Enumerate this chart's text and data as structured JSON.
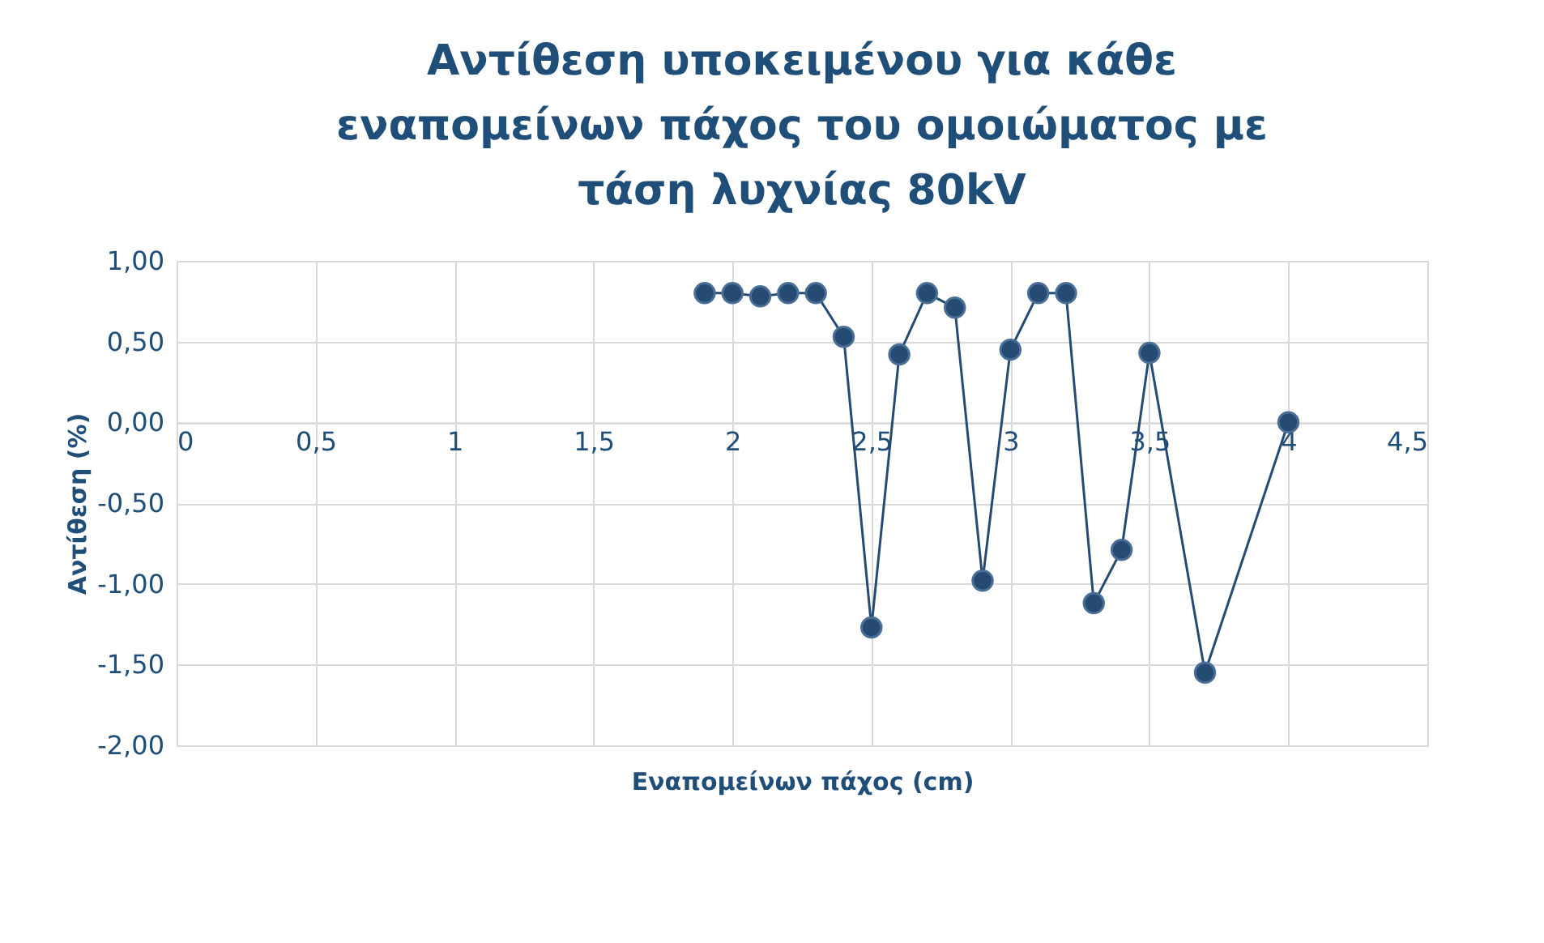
{
  "chart_data": {
    "type": "line",
    "title": "Αντίθεση υποκειμένου για κάθε εναπομείνων πάχος του ομοιώματος με τάση λυχνίας 80kV",
    "xlabel": "Εναπομείνων πάχος (cm)",
    "ylabel": "Αντίθεση (%)",
    "x": [
      1.9,
      2.0,
      2.1,
      2.2,
      2.3,
      2.4,
      2.5,
      2.6,
      2.7,
      2.8,
      2.9,
      3.0,
      3.1,
      3.2,
      3.3,
      3.4,
      3.5,
      3.7,
      4.0
    ],
    "series": [
      {
        "color": "#264b73",
        "values": [
          0.8,
          0.8,
          0.78,
          0.8,
          0.8,
          0.53,
          -1.27,
          0.42,
          0.8,
          0.71,
          -0.98,
          0.45,
          0.8,
          0.8,
          -1.12,
          -0.79,
          0.43,
          -1.55,
          0.0
        ]
      }
    ],
    "xlim": [
      0,
      4.5
    ],
    "ylim": [
      -2,
      1
    ],
    "xticks": [
      0,
      {
        "value": 0.5,
        "label": "0,5"
      },
      1,
      {
        "value": 1.5,
        "label": "1,5"
      },
      2,
      {
        "value": 2.5,
        "label": "2,5"
      },
      3,
      {
        "value": 3.5,
        "label": "3,5"
      },
      4,
      {
        "value": 4.5,
        "label": "4,5"
      }
    ],
    "yticks": [
      {
        "value": -2,
        "label": "-2,00"
      },
      {
        "value": -1.5,
        "label": "-1,50"
      },
      {
        "value": -1,
        "label": "-1,00"
      },
      {
        "value": -0.5,
        "label": "-0,50"
      },
      {
        "value": 0,
        "label": "0,00"
      },
      {
        "value": 0.5,
        "label": "0,50"
      },
      {
        "value": 1,
        "label": "1,00"
      }
    ],
    "grid": true,
    "marker": "circle",
    "line_style": "solid"
  }
}
